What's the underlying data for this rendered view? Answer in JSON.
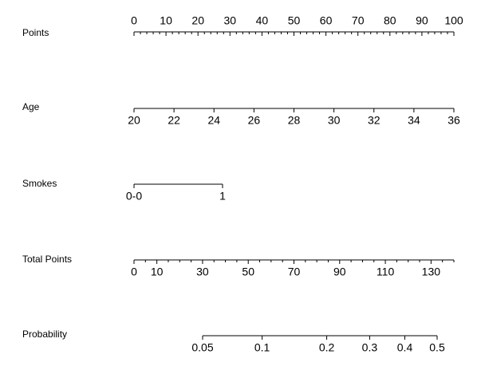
{
  "chart_data": {
    "type": "nomogram",
    "axes": [
      {
        "label": "Points",
        "lim": [
          0,
          100
        ],
        "ticks": [
          0,
          10,
          20,
          30,
          40,
          50,
          60,
          70,
          80,
          90,
          100
        ],
        "minor_ticks": [
          2,
          4,
          6,
          8,
          12,
          14,
          16,
          18,
          22,
          24,
          26,
          28,
          32,
          34,
          36,
          38,
          42,
          44,
          46,
          48,
          52,
          54,
          56,
          58,
          62,
          64,
          66,
          68,
          72,
          74,
          76,
          78,
          82,
          84,
          86,
          88,
          92,
          94,
          96,
          98
        ],
        "labels_above": true
      },
      {
        "label": "Age",
        "lim": [
          20,
          36
        ],
        "ticks": [
          20,
          22,
          24,
          26,
          28,
          30,
          32,
          34,
          36
        ]
      },
      {
        "label": "Smokes",
        "lim": [
          0,
          1
        ],
        "ticks": [
          {
            "value": 0,
            "label": "0-0"
          },
          1
        ]
      },
      {
        "label": "Total Points",
        "lim": [
          0,
          140
        ],
        "ticks": [
          0,
          10,
          30,
          50,
          70,
          90,
          110,
          130
        ],
        "minor_ticks": [
          5,
          15,
          20,
          25,
          35,
          40,
          45,
          55,
          60,
          65,
          75,
          80,
          85,
          95,
          100,
          105,
          115,
          120,
          125,
          135,
          140
        ]
      },
      {
        "label": "Probability",
        "lim": [
          0.05,
          0.5
        ],
        "scale": "logit",
        "ticks": [
          0.05,
          0.1,
          0.2,
          0.3,
          0.4,
          0.5
        ]
      }
    ]
  }
}
